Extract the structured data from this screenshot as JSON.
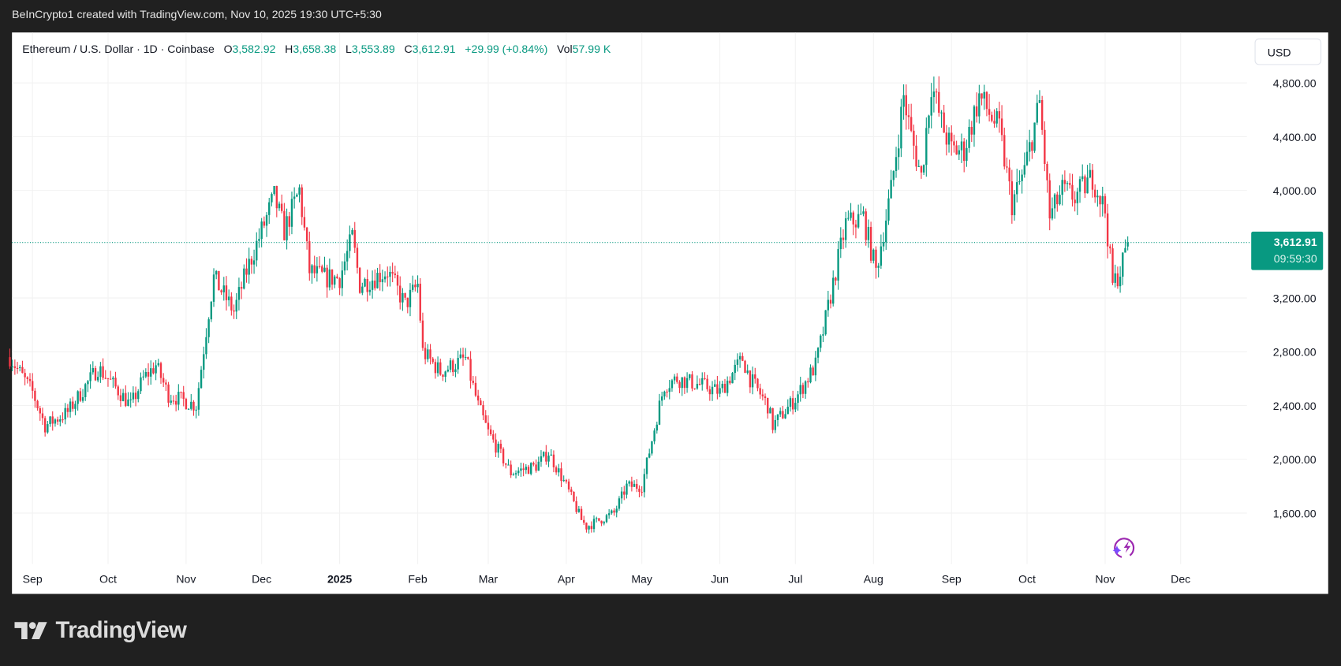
{
  "caption": "BeInCrypto1 created with TradingView.com, Nov 10, 2025 19:30 UTC+5:30",
  "legend": {
    "symbol": "Ethereum / U.S. Dollar · 1D · Coinbase",
    "o_label": "O",
    "o": "3,582.92",
    "h_label": "H",
    "h": "3,658.38",
    "l_label": "L",
    "l": "3,553.89",
    "c_label": "C",
    "c": "3,612.91",
    "change": "+29.99 (+0.84%)",
    "vol_label": "Vol",
    "vol": "57.99 K"
  },
  "currency_button": "USD",
  "last_price": {
    "price": "3,612.91",
    "countdown": "09:59:30"
  },
  "brand": "TradingView",
  "colors": {
    "up": "#089981",
    "down": "#F23645",
    "grid": "#f2f2f2",
    "background": "#202020"
  },
  "chart_data": {
    "type": "candlestick",
    "title": "Ethereum / U.S. Dollar · 1D · Coinbase",
    "ylim": [
      1300,
      4950
    ],
    "y_ticks": [
      1600,
      2000,
      2400,
      2800,
      3200,
      4000,
      4400,
      4800
    ],
    "y_tick_labels": [
      "1,600.00",
      "2,000.00",
      "2,400.00",
      "2,800.00",
      "3,200.00",
      "4,000.00",
      "4,400.00",
      "4,800.00"
    ],
    "x_ticks": [
      {
        "date": "2024-09-01",
        "label": "Sep"
      },
      {
        "date": "2024-10-01",
        "label": "Oct"
      },
      {
        "date": "2024-11-01",
        "label": "Nov"
      },
      {
        "date": "2024-12-01",
        "label": "Dec"
      },
      {
        "date": "2025-01-01",
        "label": "2025"
      },
      {
        "date": "2025-02-01",
        "label": "Feb"
      },
      {
        "date": "2025-03-01",
        "label": "Mar"
      },
      {
        "date": "2025-04-01",
        "label": "Apr"
      },
      {
        "date": "2025-05-01",
        "label": "May"
      },
      {
        "date": "2025-06-01",
        "label": "Jun"
      },
      {
        "date": "2025-07-01",
        "label": "Jul"
      },
      {
        "date": "2025-08-01",
        "label": "Aug"
      },
      {
        "date": "2025-09-01",
        "label": "Sep"
      },
      {
        "date": "2025-10-01",
        "label": "Oct"
      },
      {
        "date": "2025-11-01",
        "label": "Nov"
      },
      {
        "date": "2025-12-01",
        "label": "Dec"
      }
    ],
    "close_anchors": [
      [
        "2024-08-23",
        2760
      ],
      [
        "2024-09-01",
        2500
      ],
      [
        "2024-09-06",
        2250
      ],
      [
        "2024-09-15",
        2350
      ],
      [
        "2024-09-27",
        2680
      ],
      [
        "2024-10-01",
        2600
      ],
      [
        "2024-10-10",
        2400
      ],
      [
        "2024-10-15",
        2600
      ],
      [
        "2024-10-20",
        2700
      ],
      [
        "2024-10-25",
        2480
      ],
      [
        "2024-11-01",
        2430
      ],
      [
        "2024-11-05",
        2400
      ],
      [
        "2024-11-10",
        3100
      ],
      [
        "2024-11-12",
        3350
      ],
      [
        "2024-11-20",
        3100
      ],
      [
        "2024-11-25",
        3400
      ],
      [
        "2024-12-01",
        3700
      ],
      [
        "2024-12-06",
        3950
      ],
      [
        "2024-12-10",
        3700
      ],
      [
        "2024-12-16",
        4000
      ],
      [
        "2024-12-20",
        3400
      ],
      [
        "2024-12-26",
        3350
      ],
      [
        "2025-01-01",
        3350
      ],
      [
        "2025-01-06",
        3650
      ],
      [
        "2025-01-09",
        3300
      ],
      [
        "2025-01-20",
        3400
      ],
      [
        "2025-01-27",
        3150
      ],
      [
        "2025-02-01",
        3300
      ],
      [
        "2025-02-03",
        2800
      ],
      [
        "2025-02-10",
        2650
      ],
      [
        "2025-02-20",
        2750
      ],
      [
        "2025-02-25",
        2400
      ],
      [
        "2025-03-01",
        2200
      ],
      [
        "2025-03-10",
        1900
      ],
      [
        "2025-03-20",
        1950
      ],
      [
        "2025-03-25",
        2050
      ],
      [
        "2025-04-01",
        1800
      ],
      [
        "2025-04-07",
        1550
      ],
      [
        "2025-04-09",
        1500
      ],
      [
        "2025-04-20",
        1600
      ],
      [
        "2025-04-25",
        1800
      ],
      [
        "2025-05-01",
        1800
      ],
      [
        "2025-05-08",
        2400
      ],
      [
        "2025-05-10",
        2550
      ],
      [
        "2025-05-15",
        2600
      ],
      [
        "2025-05-25",
        2550
      ],
      [
        "2025-06-01",
        2500
      ],
      [
        "2025-06-10",
        2750
      ],
      [
        "2025-06-13",
        2600
      ],
      [
        "2025-06-20",
        2400
      ],
      [
        "2025-06-22",
        2250
      ],
      [
        "2025-07-01",
        2450
      ],
      [
        "2025-07-09",
        2700
      ],
      [
        "2025-07-12",
        2950
      ],
      [
        "2025-07-17",
        3400
      ],
      [
        "2025-07-21",
        3750
      ],
      [
        "2025-07-28",
        3800
      ],
      [
        "2025-08-02",
        3400
      ],
      [
        "2025-08-08",
        4000
      ],
      [
        "2025-08-13",
        4700
      ],
      [
        "2025-08-16",
        4400
      ],
      [
        "2025-08-20",
        4100
      ],
      [
        "2025-08-24",
        4800
      ],
      [
        "2025-08-28",
        4500
      ],
      [
        "2025-09-01",
        4300
      ],
      [
        "2025-09-06",
        4300
      ],
      [
        "2025-09-12",
        4700
      ],
      [
        "2025-09-20",
        4450
      ],
      [
        "2025-09-25",
        3900
      ],
      [
        "2025-09-30",
        4150
      ],
      [
        "2025-10-06",
        4650
      ],
      [
        "2025-10-10",
        3800
      ],
      [
        "2025-10-15",
        4000
      ],
      [
        "2025-10-20",
        3950
      ],
      [
        "2025-10-27",
        4100
      ],
      [
        "2025-11-01",
        3850
      ],
      [
        "2025-11-04",
        3300
      ],
      [
        "2025-11-07",
        3400
      ],
      [
        "2025-11-10",
        3612.91
      ]
    ],
    "last_candle": {
      "date": "2025-11-10",
      "open": 3582.92,
      "high": 3658.38,
      "low": 3553.89,
      "close": 3612.91
    },
    "last_price_line": 3612.91
  }
}
